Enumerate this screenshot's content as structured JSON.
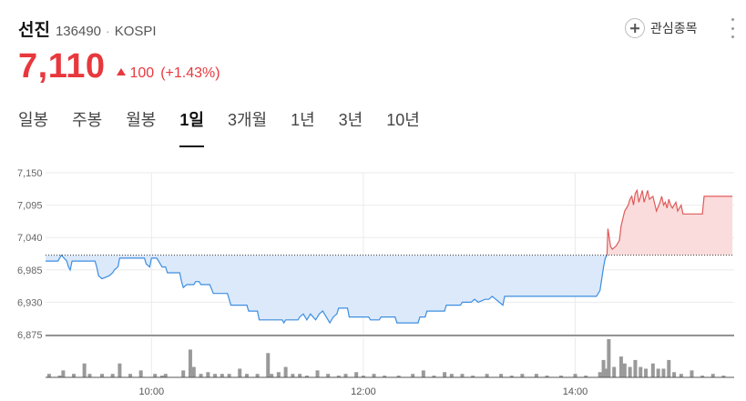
{
  "stock": {
    "name": "선진",
    "code": "136490",
    "separator": "·",
    "market": "KOSPI"
  },
  "watch": {
    "label": "관심종목",
    "icon": "plus-circle-icon"
  },
  "more_icon": "more-vertical-icon",
  "price": {
    "current": "7,110",
    "change": "100",
    "change_pct": "(+1.43%)",
    "direction": "up",
    "up_color": "#e8383d"
  },
  "tabs": [
    {
      "label": "일봉",
      "active": false
    },
    {
      "label": "주봉",
      "active": false
    },
    {
      "label": "월봉",
      "active": false
    },
    {
      "label": "1일",
      "active": true
    },
    {
      "label": "3개월",
      "active": false
    },
    {
      "label": "1년",
      "active": false
    },
    {
      "label": "3년",
      "active": false
    },
    {
      "label": "10년",
      "active": false
    }
  ],
  "chart_data": {
    "type": "area",
    "baseline_prev_close": 7010,
    "yticks": [
      6875,
      6930,
      6985,
      7040,
      7095,
      7150
    ],
    "ytick_labels": [
      "6,875",
      "6,930",
      "6,985",
      "7,040",
      "7,095",
      "7,150"
    ],
    "ylim": [
      6875,
      7150
    ],
    "xticks": [
      "10:00",
      "12:00",
      "14:00"
    ],
    "x_minutes_range": [
      540,
      930
    ],
    "colors": {
      "down": "#3d8ee0",
      "down_fill": "#dbe9fb",
      "up": "#e05a5a",
      "up_fill": "#fbdcdc",
      "volume": "#999999"
    },
    "price_series": [
      [
        540,
        7000
      ],
      [
        547,
        7000
      ],
      [
        549,
        7010
      ],
      [
        552,
        7000
      ],
      [
        553,
        6990
      ],
      [
        554,
        6985
      ],
      [
        555,
        7000
      ],
      [
        568,
        7000
      ],
      [
        569,
        6990
      ],
      [
        570,
        6975
      ],
      [
        572,
        6970
      ],
      [
        576,
        6975
      ],
      [
        578,
        6980
      ],
      [
        579,
        6985
      ],
      [
        581,
        6990
      ],
      [
        582,
        7005
      ],
      [
        596,
        7005
      ],
      [
        597,
        6995
      ],
      [
        599,
        6990
      ],
      [
        600,
        7005
      ],
      [
        603,
        7005
      ],
      [
        605,
        6995
      ],
      [
        606,
        6990
      ],
      [
        608,
        6990
      ],
      [
        609,
        6980
      ],
      [
        616,
        6980
      ],
      [
        617,
        6965
      ],
      [
        618,
        6955
      ],
      [
        620,
        6960
      ],
      [
        624,
        6960
      ],
      [
        625,
        6965
      ],
      [
        627,
        6965
      ],
      [
        628,
        6960
      ],
      [
        633,
        6960
      ],
      [
        635,
        6945
      ],
      [
        643,
        6945
      ],
      [
        645,
        6925
      ],
      [
        654,
        6925
      ],
      [
        655,
        6915
      ],
      [
        660,
        6915
      ],
      [
        661,
        6900
      ],
      [
        674,
        6900
      ],
      [
        675,
        6895
      ],
      [
        676,
        6900
      ],
      [
        683,
        6900
      ],
      [
        684,
        6905
      ],
      [
        686,
        6910
      ],
      [
        688,
        6900
      ],
      [
        690,
        6910
      ],
      [
        693,
        6900
      ],
      [
        695,
        6910
      ],
      [
        697,
        6915
      ],
      [
        699,
        6905
      ],
      [
        701,
        6895
      ],
      [
        703,
        6905
      ],
      [
        705,
        6910
      ],
      [
        706,
        6920
      ],
      [
        711,
        6920
      ],
      [
        712,
        6905
      ],
      [
        723,
        6905
      ],
      [
        724,
        6900
      ],
      [
        729,
        6900
      ],
      [
        730,
        6905
      ],
      [
        738,
        6905
      ],
      [
        739,
        6895
      ],
      [
        751,
        6895
      ],
      [
        752,
        6905
      ],
      [
        755,
        6905
      ],
      [
        756,
        6915
      ],
      [
        766,
        6915
      ],
      [
        767,
        6925
      ],
      [
        775,
        6925
      ],
      [
        776,
        6930
      ],
      [
        781,
        6930
      ],
      [
        783,
        6935
      ],
      [
        785,
        6930
      ],
      [
        789,
        6935
      ],
      [
        791,
        6935
      ],
      [
        793,
        6940
      ],
      [
        795,
        6935
      ],
      [
        797,
        6930
      ],
      [
        799,
        6925
      ],
      [
        800,
        6940
      ],
      [
        852,
        6940
      ],
      [
        854,
        6950
      ],
      [
        856,
        6990
      ],
      [
        857,
        7005
      ],
      [
        858,
        7010
      ],
      [
        858.5,
        7055
      ],
      [
        859,
        7045
      ],
      [
        860,
        7025
      ],
      [
        861,
        7020
      ],
      [
        863,
        7025
      ],
      [
        865,
        7035
      ],
      [
        866,
        7060
      ],
      [
        868,
        7085
      ],
      [
        870,
        7095
      ],
      [
        871,
        7105
      ],
      [
        872,
        7110
      ],
      [
        873,
        7095
      ],
      [
        874,
        7115
      ],
      [
        875,
        7120
      ],
      [
        876,
        7100
      ],
      [
        877,
        7110
      ],
      [
        878,
        7120
      ],
      [
        879,
        7100
      ],
      [
        881,
        7120
      ],
      [
        882,
        7105
      ],
      [
        884,
        7110
      ],
      [
        886,
        7085
      ],
      [
        888,
        7100
      ],
      [
        889,
        7110
      ],
      [
        890,
        7095
      ],
      [
        891,
        7100
      ],
      [
        892,
        7090
      ],
      [
        893,
        7105
      ],
      [
        894,
        7095
      ],
      [
        895,
        7090
      ],
      [
        896,
        7095
      ],
      [
        897,
        7100
      ],
      [
        898,
        7085
      ],
      [
        900,
        7095
      ],
      [
        901,
        7080
      ],
      [
        912,
        7080
      ],
      [
        913,
        7110
      ],
      [
        929,
        7110
      ]
    ],
    "volume_series": [
      [
        542,
        1
      ],
      [
        548,
        0.5
      ],
      [
        550,
        2
      ],
      [
        556,
        1
      ],
      [
        562,
        4
      ],
      [
        565,
        1
      ],
      [
        572,
        1
      ],
      [
        578,
        1
      ],
      [
        582,
        4
      ],
      [
        588,
        1
      ],
      [
        594,
        2
      ],
      [
        602,
        1
      ],
      [
        606,
        0.5
      ],
      [
        608,
        1
      ],
      [
        618,
        2
      ],
      [
        622,
        8
      ],
      [
        624,
        3
      ],
      [
        628,
        1
      ],
      [
        632,
        1.5
      ],
      [
        636,
        1
      ],
      [
        640,
        1
      ],
      [
        644,
        1
      ],
      [
        650,
        2.5
      ],
      [
        654,
        1
      ],
      [
        660,
        1
      ],
      [
        666,
        7
      ],
      [
        668,
        1
      ],
      [
        672,
        1.5
      ],
      [
        676,
        3
      ],
      [
        680,
        1
      ],
      [
        684,
        1
      ],
      [
        688,
        0.5
      ],
      [
        694,
        2
      ],
      [
        700,
        1
      ],
      [
        706,
        0.5
      ],
      [
        710,
        1
      ],
      [
        716,
        1.5
      ],
      [
        720,
        0.5
      ],
      [
        726,
        1
      ],
      [
        732,
        0.5
      ],
      [
        740,
        0.5
      ],
      [
        748,
        1
      ],
      [
        754,
        2
      ],
      [
        760,
        0.5
      ],
      [
        766,
        1.5
      ],
      [
        770,
        1
      ],
      [
        776,
        1
      ],
      [
        782,
        0.5
      ],
      [
        790,
        1
      ],
      [
        798,
        1
      ],
      [
        804,
        0.5
      ],
      [
        810,
        1
      ],
      [
        818,
        1
      ],
      [
        824,
        0.5
      ],
      [
        832,
        0.5
      ],
      [
        840,
        1
      ],
      [
        846,
        0.5
      ],
      [
        854,
        1.5
      ],
      [
        856,
        5
      ],
      [
        858,
        2.5
      ],
      [
        859,
        11
      ],
      [
        862,
        3
      ],
      [
        866,
        6
      ],
      [
        868,
        4
      ],
      [
        871,
        3
      ],
      [
        874,
        5
      ],
      [
        877,
        3
      ],
      [
        880,
        2.5
      ],
      [
        884,
        4
      ],
      [
        887,
        2.5
      ],
      [
        890,
        2.5
      ],
      [
        893,
        5
      ],
      [
        896,
        1.5
      ],
      [
        900,
        1
      ],
      [
        906,
        2
      ],
      [
        912,
        0.5
      ],
      [
        918,
        1
      ],
      [
        924,
        0.5
      ]
    ]
  }
}
